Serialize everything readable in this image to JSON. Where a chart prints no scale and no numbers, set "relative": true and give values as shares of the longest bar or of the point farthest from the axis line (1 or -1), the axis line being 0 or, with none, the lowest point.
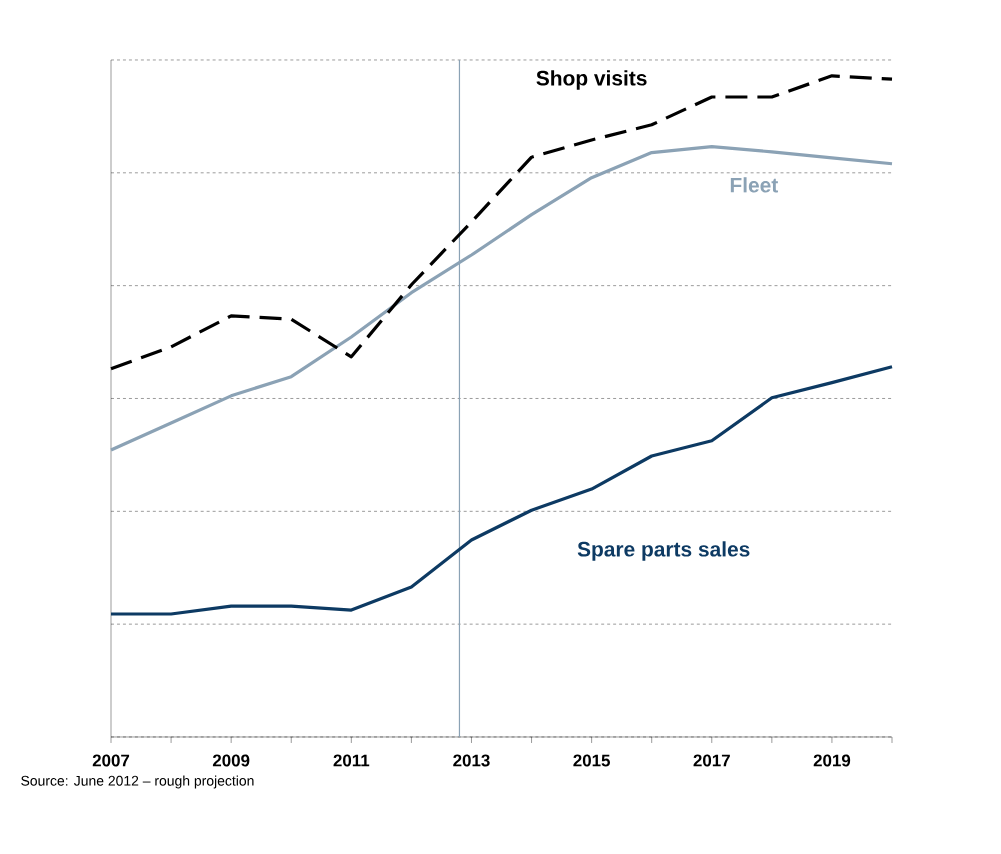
{
  "chart_data": {
    "type": "line",
    "relative": true,
    "x": [
      2007,
      2008,
      2009,
      2010,
      2011,
      2012,
      2013,
      2014,
      2015,
      2016,
      2017,
      2018,
      2019,
      2020
    ],
    "xlim": [
      2007,
      2020
    ],
    "xticks": [
      2007,
      {
        "value": 2008,
        "label": null
      },
      2009,
      {
        "value": 2010,
        "label": null
      },
      2011,
      {
        "value": 2012,
        "label": null
      },
      2013,
      {
        "value": 2014,
        "label": null
      },
      2015,
      {
        "value": 2016,
        "label": null
      },
      2017,
      {
        "value": 2018,
        "label": null
      },
      2019,
      {
        "value": 2020,
        "label": null
      }
    ],
    "grid": "y",
    "series": [
      {
        "name": "Shop visits",
        "color": "#000000",
        "line_style": "dashed",
        "values": [
          0.557,
          0.59,
          0.637,
          0.632,
          0.575,
          0.684,
          0.779,
          0.877,
          0.903,
          0.926,
          0.968,
          0.968,
          1.0,
          0.995
        ]
      },
      {
        "name": "Fleet",
        "color": "#8ba2b5",
        "line_style": "solid",
        "values": [
          0.434,
          0.475,
          0.516,
          0.545,
          0.605,
          0.672,
          0.729,
          0.79,
          0.846,
          0.884,
          0.893,
          0.885,
          0.876,
          0.867
        ]
      },
      {
        "name": "Spare parts sales",
        "color": "#0d3a63",
        "line_style": "solid",
        "values": [
          0.186,
          0.186,
          0.198,
          0.198,
          0.192,
          0.227,
          0.298,
          0.343,
          0.375,
          0.425,
          0.448,
          0.513,
          0.536,
          0.56
        ]
      }
    ],
    "ref_lines": [
      {
        "axis": "x",
        "value": 2012.8,
        "color": "#8ba2b5"
      }
    ],
    "annotations": [
      "Source: June 2012 – rough projection"
    ]
  }
}
